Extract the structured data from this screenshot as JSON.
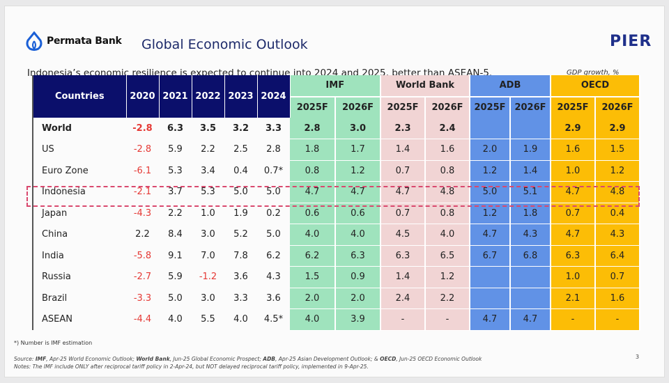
{
  "header": {
    "brand": "Permata Bank",
    "title": "Global Economic Outlook",
    "partner_logo": "PIER",
    "subtitle": "Indonesia’s economic resilience is expected to continue into 2024 and 2025, better than ASEAN-5.",
    "unit": "GDP growth, %"
  },
  "colors": {
    "navy": "#0b0f6b",
    "imf": "#9fe3bd",
    "world_bank": "#f1d4d4",
    "adb": "#6192e6",
    "oecd": "#fcbd06",
    "negative": "#e53935",
    "highlight": "#d9486e"
  },
  "table": {
    "countries_header": "Countries",
    "years": [
      "2020",
      "2021",
      "2022",
      "2023",
      "2024"
    ],
    "institutions": [
      "IMF",
      "World Bank",
      "ADB",
      "OECD"
    ],
    "forecast_years": [
      "2025F",
      "2026F"
    ],
    "highlighted_row": "Indonesia",
    "rows": [
      {
        "country": "World",
        "hist": [
          "-2.8",
          "6.3",
          "3.5",
          "3.2",
          "3.3"
        ],
        "imf": [
          "2.8",
          "3.0"
        ],
        "wb": [
          "2.3",
          "2.4"
        ],
        "adb": [
          "",
          ""
        ],
        "oecd": [
          "2.9",
          "2.9"
        ]
      },
      {
        "country": "US",
        "hist": [
          "-2.8",
          "5.9",
          "2.2",
          "2.5",
          "2.8"
        ],
        "imf": [
          "1.8",
          "1.7"
        ],
        "wb": [
          "1.4",
          "1.6"
        ],
        "adb": [
          "2.0",
          "1.9"
        ],
        "oecd": [
          "1.6",
          "1.5"
        ]
      },
      {
        "country": "Euro Zone",
        "hist": [
          "-6.1",
          "5.3",
          "3.4",
          "0.4",
          "0.7*"
        ],
        "imf": [
          "0.8",
          "1.2"
        ],
        "wb": [
          "0.7",
          "0.8"
        ],
        "adb": [
          "1.2",
          "1.4"
        ],
        "oecd": [
          "1.0",
          "1.2"
        ]
      },
      {
        "country": "Indonesia",
        "hist": [
          "-2.1",
          "3.7",
          "5.3",
          "5.0",
          "5.0"
        ],
        "imf": [
          "4.7",
          "4.7"
        ],
        "wb": [
          "4.7",
          "4.8"
        ],
        "adb": [
          "5.0",
          "5.1"
        ],
        "oecd": [
          "4.7",
          "4.8"
        ]
      },
      {
        "country": "Japan",
        "hist": [
          "-4.3",
          "2.2",
          "1.0",
          "1.9",
          "0.2"
        ],
        "imf": [
          "0.6",
          "0.6"
        ],
        "wb": [
          "0.7",
          "0.8"
        ],
        "adb": [
          "1.2",
          "1.8"
        ],
        "oecd": [
          "0.7",
          "0.4"
        ]
      },
      {
        "country": "China",
        "hist": [
          "2.2",
          "8.4",
          "3.0",
          "5.2",
          "5.0"
        ],
        "imf": [
          "4.0",
          "4.0"
        ],
        "wb": [
          "4.5",
          "4.0"
        ],
        "adb": [
          "4.7",
          "4.3"
        ],
        "oecd": [
          "4.7",
          "4.3"
        ]
      },
      {
        "country": "India",
        "hist": [
          "-5.8",
          "9.1",
          "7.0",
          "7.8",
          "6.2"
        ],
        "imf": [
          "6.2",
          "6.3"
        ],
        "wb": [
          "6.3",
          "6.5"
        ],
        "adb": [
          "6.7",
          "6.8"
        ],
        "oecd": [
          "6.3",
          "6.4"
        ]
      },
      {
        "country": "Russia",
        "hist": [
          "-2.7",
          "5.9",
          "-1.2",
          "3.6",
          "4.3"
        ],
        "imf": [
          "1.5",
          "0.9"
        ],
        "wb": [
          "1.4",
          "1.2"
        ],
        "adb": [
          "",
          ""
        ],
        "oecd": [
          "1.0",
          "0.7"
        ]
      },
      {
        "country": "Brazil",
        "hist": [
          "-3.3",
          "5.0",
          "3.0",
          "3.3",
          "3.6"
        ],
        "imf": [
          "2.0",
          "2.0"
        ],
        "wb": [
          "2.4",
          "2.2"
        ],
        "adb": [
          "",
          ""
        ],
        "oecd": [
          "2.1",
          "1.6"
        ]
      },
      {
        "country": "ASEAN",
        "hist": [
          "-4.4",
          "4.0",
          "5.5",
          "4.0",
          "4.5*"
        ],
        "imf": [
          "4.0",
          "3.9"
        ],
        "wb": [
          "-",
          "-"
        ],
        "adb": [
          "4.7",
          "4.7"
        ],
        "oecd": [
          "-",
          "-"
        ]
      }
    ]
  },
  "footer": {
    "footnote": "*) Number is IMF estimation",
    "source_label": "Source: ",
    "source_imf": "IMF",
    "source_imf_text": ", Apr-25 World Economic Outlook; ",
    "source_wb": "World Bank",
    "source_wb_text": ", Jun-25 Global Economic Prospect; ",
    "source_adb": "ADB",
    "source_adb_text": ", Apr-25 Asian Development Outlook; & ",
    "source_oecd": "OECD",
    "source_oecd_text": ", Jun-25 OECD Economic Outlook",
    "notes": "Notes: The IMF include ONLY after reciprocal tariff policy in 2-Apr-24, but NOT delayed reciprocal tariff policy, implemented in 9-Apr-25.",
    "page_number": "3"
  }
}
